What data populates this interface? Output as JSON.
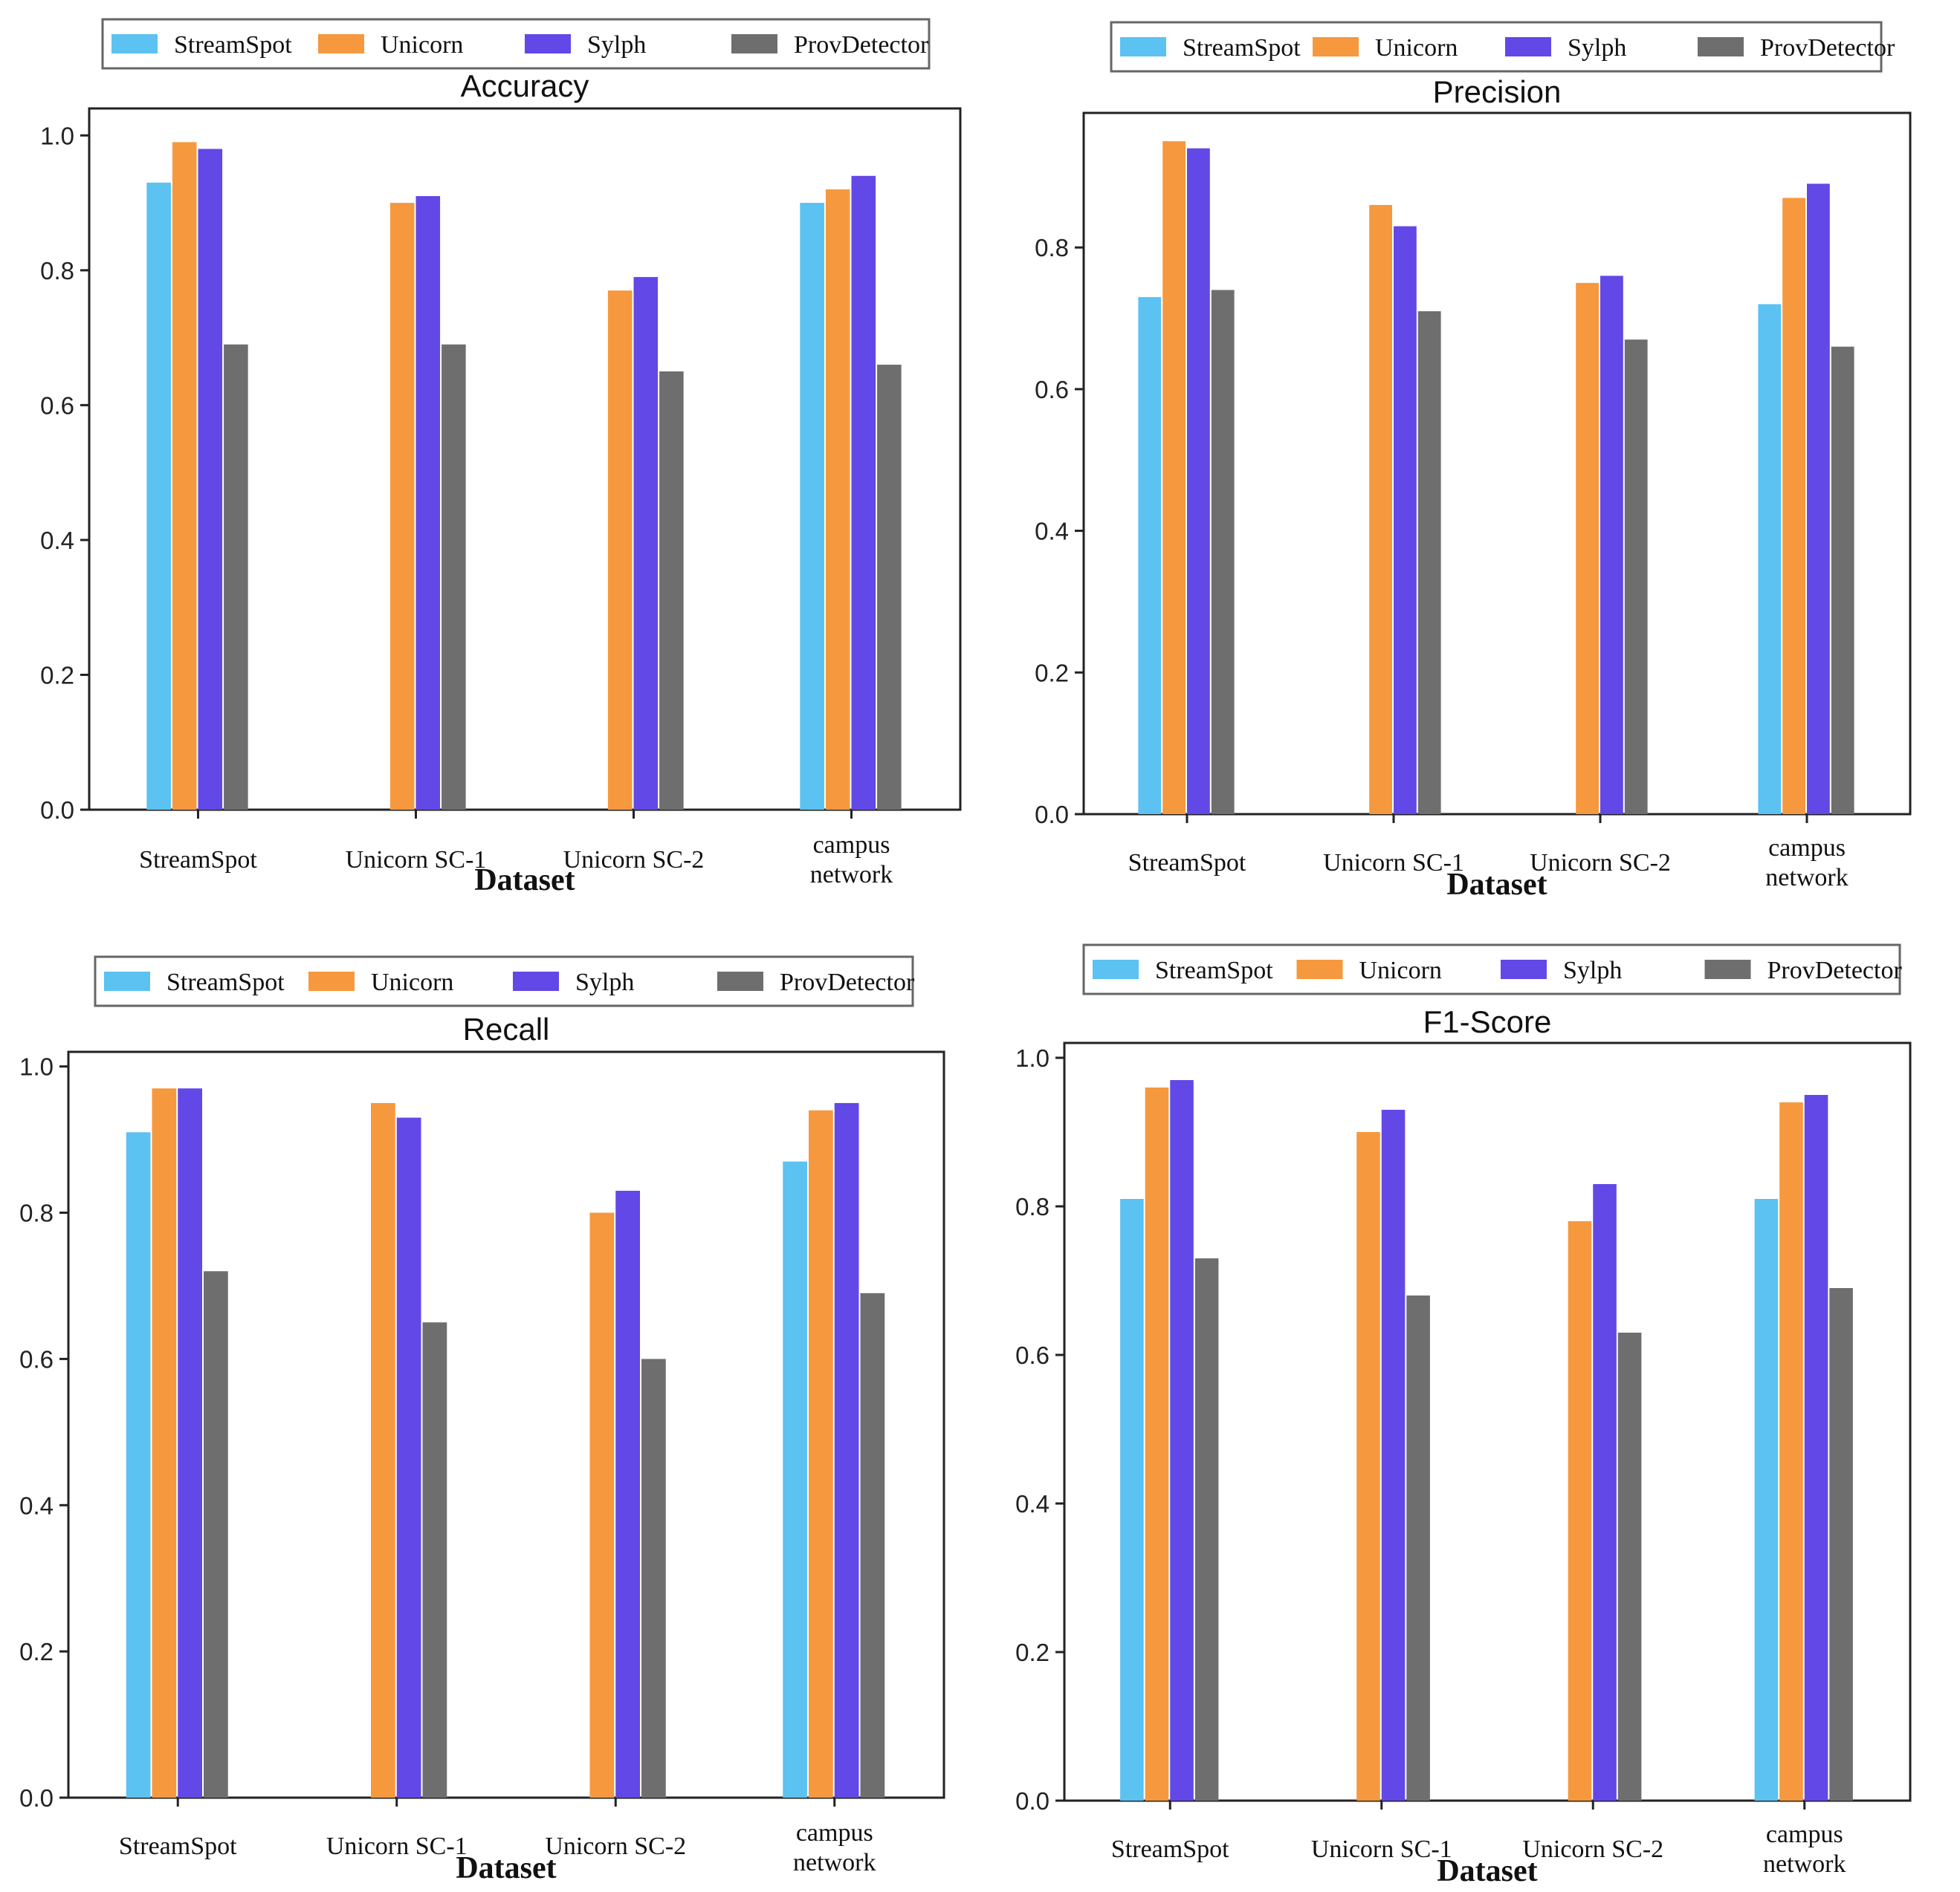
{
  "chart_data": [
    {
      "type": "bar",
      "title": "Accuracy",
      "xlabel": "Dataset",
      "ylabel": "",
      "ylim": [
        0,
        1.04
      ],
      "yticks": [
        "0.0",
        "0.2",
        "0.4",
        "0.6",
        "0.8",
        "1.0"
      ],
      "legend_position": "top",
      "categories": [
        "StreamSpot",
        "Unicorn SC-1",
        "Unicorn SC-2",
        [
          "campus",
          "network"
        ]
      ],
      "series": [
        {
          "name": "StreamSpot",
          "values": [
            0.93,
            null,
            null,
            0.9
          ]
        },
        {
          "name": "Unicorn",
          "values": [
            0.99,
            0.9,
            0.77,
            0.92
          ]
        },
        {
          "name": "Sylph",
          "values": [
            0.98,
            0.91,
            0.79,
            0.94
          ]
        },
        {
          "name": "ProvDetector",
          "values": [
            0.69,
            0.69,
            0.65,
            0.66
          ]
        }
      ]
    },
    {
      "type": "bar",
      "title": "Precision",
      "xlabel": "Dataset",
      "ylabel": "",
      "ylim": [
        0,
        0.99
      ],
      "yticks": [
        "0.0",
        "0.2",
        "0.4",
        "0.6",
        "0.8"
      ],
      "legend_position": "top",
      "categories": [
        "StreamSpot",
        "Unicorn SC-1",
        "Unicorn SC-2",
        [
          "campus",
          "network"
        ]
      ],
      "series": [
        {
          "name": "StreamSpot",
          "values": [
            0.73,
            null,
            null,
            0.72
          ]
        },
        {
          "name": "Unicorn",
          "values": [
            0.95,
            0.86,
            0.75,
            0.87
          ]
        },
        {
          "name": "Sylph",
          "values": [
            0.94,
            0.83,
            0.76,
            0.89
          ]
        },
        {
          "name": "ProvDetector",
          "values": [
            0.74,
            0.71,
            0.67,
            0.66
          ]
        }
      ]
    },
    {
      "type": "bar",
      "title": "Recall",
      "xlabel": "Dataset",
      "ylabel": "",
      "ylim": [
        0,
        1.02
      ],
      "yticks": [
        "0.0",
        "0.2",
        "0.4",
        "0.6",
        "0.8",
        "1.0"
      ],
      "legend_position": "top",
      "categories": [
        "StreamSpot",
        "Unicorn SC-1",
        "Unicorn SC-2",
        [
          "campus",
          "network"
        ]
      ],
      "series": [
        {
          "name": "StreamSpot",
          "values": [
            0.91,
            null,
            null,
            0.87
          ]
        },
        {
          "name": "Unicorn",
          "values": [
            0.97,
            0.95,
            0.8,
            0.94
          ]
        },
        {
          "name": "Sylph",
          "values": [
            0.97,
            0.93,
            0.83,
            0.95
          ]
        },
        {
          "name": "ProvDetector",
          "values": [
            0.72,
            0.65,
            0.6,
            0.69
          ]
        }
      ]
    },
    {
      "type": "bar",
      "title": "F1-Score",
      "xlabel": "Dataset",
      "ylabel": "",
      "ylim": [
        0,
        1.02
      ],
      "yticks": [
        "0.0",
        "0.2",
        "0.4",
        "0.6",
        "0.8",
        "1.0"
      ],
      "legend_position": "top",
      "categories": [
        "StreamSpot",
        "Unicorn SC-1",
        "Unicorn SC-2",
        [
          "campus",
          "network"
        ]
      ],
      "series": [
        {
          "name": "StreamSpot",
          "values": [
            0.81,
            null,
            null,
            0.81
          ]
        },
        {
          "name": "Unicorn",
          "values": [
            0.96,
            0.9,
            0.78,
            0.94
          ]
        },
        {
          "name": "Sylph",
          "values": [
            0.97,
            0.93,
            0.83,
            0.95
          ]
        },
        {
          "name": "ProvDetector",
          "values": [
            0.73,
            0.68,
            0.63,
            0.69
          ]
        }
      ]
    }
  ],
  "colors": {
    "StreamSpot": "#5bc2f2",
    "Unicorn": "#f6983e",
    "Sylph": "#6248e6",
    "ProvDetector": "#6e6e6e"
  }
}
